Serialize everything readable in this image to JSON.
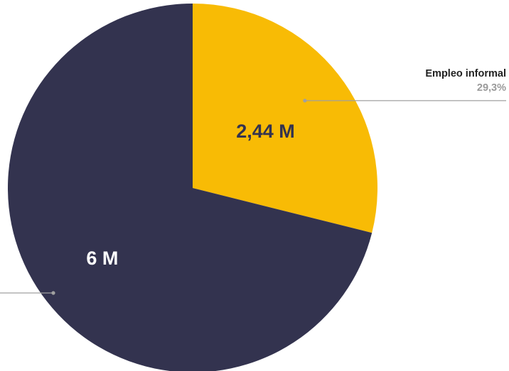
{
  "chart_data": {
    "type": "pie",
    "slices": [
      {
        "name": "Empleo informal",
        "value": 2.44,
        "value_label": "2,44 M",
        "percent_label": "29,3%",
        "color": "#f8bb05",
        "label_color": "#33334f"
      },
      {
        "value": 6,
        "value_label": "6 M",
        "color": "#33334f",
        "label_color": "#ffffff"
      }
    ],
    "start_angle": "12 o'clock",
    "direction": "clockwise",
    "legend": "callout lines"
  }
}
